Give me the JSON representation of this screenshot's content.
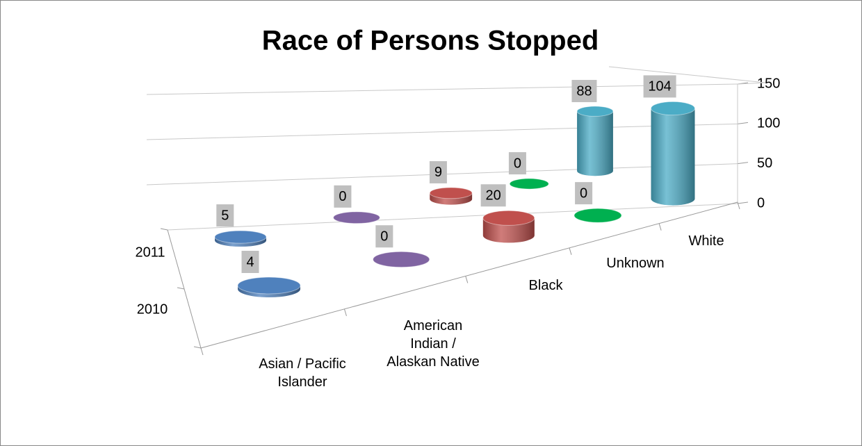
{
  "chart_data": {
    "type": "cylinder",
    "title": "Race of Persons Stopped",
    "categories": [
      "Asian / Pacific Islander",
      "American Indian / Alaskan Native",
      "Black",
      "Unknown",
      "White"
    ],
    "colors": [
      "#4f81bd",
      "#8064a2",
      "#c0504d",
      "#00b050",
      "#4bacc6"
    ],
    "series": [
      {
        "name": "2011",
        "values": [
          5,
          0,
          9,
          0,
          88
        ]
      },
      {
        "name": "2010",
        "values": [
          4,
          0,
          20,
          0,
          104
        ]
      }
    ],
    "ylim": [
      0,
      150
    ],
    "yticks": [
      0,
      50,
      100,
      150
    ],
    "grid": true
  }
}
